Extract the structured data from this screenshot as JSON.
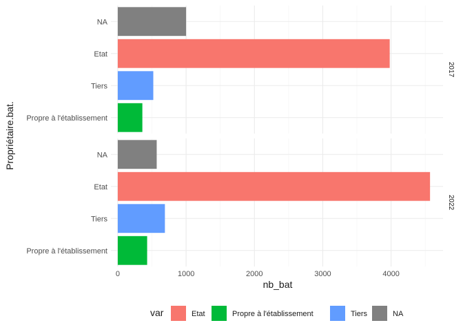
{
  "chart_data": {
    "type": "bar",
    "orientation": "horizontal",
    "xlabel": "nb_bat",
    "ylabel": "Propriétaire.bat.",
    "xlim": [
      -100,
      4760
    ],
    "x_ticks": [
      0,
      1000,
      2000,
      3000,
      4000
    ],
    "x_tick_labels": [
      "0",
      "1000",
      "2000",
      "3000",
      "4000"
    ],
    "categories": [
      "NA",
      "Etat",
      "Tiers",
      "Propre à l'établissement"
    ],
    "grid": true,
    "legend": {
      "title": "var",
      "position": "bottom",
      "entries": [
        {
          "label": "Etat",
          "color": "#F8766D"
        },
        {
          "label": "Propre à l'établissement",
          "color": "#00BA38"
        },
        {
          "label": "Tiers",
          "color": "#619CFF"
        },
        {
          "label": "NA",
          "color": "#808080"
        }
      ]
    },
    "facets": [
      {
        "label": "2017",
        "values": {
          "NA": 1000,
          "Etat": 3980,
          "Tiers": 520,
          "Propre à l'établissement": 360
        }
      },
      {
        "label": "2022",
        "values": {
          "NA": 570,
          "Etat": 4570,
          "Tiers": 690,
          "Propre à l'établissement": 430
        }
      }
    ]
  }
}
